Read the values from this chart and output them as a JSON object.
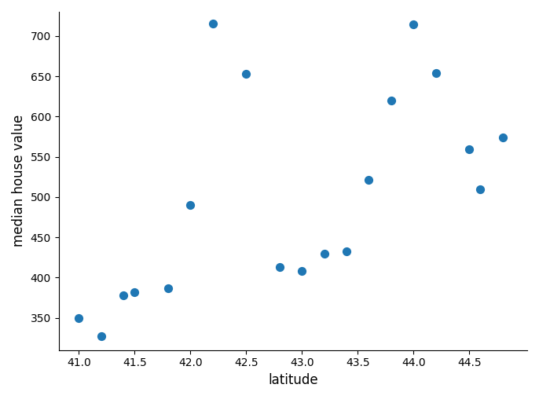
{
  "latitudes": [
    41.0,
    41.2,
    41.4,
    41.5,
    41.8,
    42.0,
    42.2,
    42.5,
    42.8,
    43.0,
    43.2,
    43.4,
    43.6,
    43.8,
    44.0,
    44.2,
    44.5,
    44.6,
    44.8
  ],
  "values": [
    350,
    327,
    378,
    382,
    387,
    490,
    715,
    653,
    413,
    408,
    430,
    433,
    521,
    620,
    714,
    654,
    559,
    510,
    574
  ],
  "dot_color": "#1f77b4",
  "dot_size": 50,
  "xlabel": "latitude",
  "ylabel": "median house value",
  "xlim": [
    40.82,
    45.02
  ],
  "ylim": [
    310,
    730
  ],
  "xticks": [
    41.0,
    41.5,
    42.0,
    42.5,
    43.0,
    43.5,
    44.0,
    44.5
  ],
  "yticks": [
    350,
    400,
    450,
    500,
    550,
    600,
    650,
    700
  ],
  "bg_color": "#ffffff",
  "xlabel_fontsize": 12,
  "ylabel_fontsize": 12,
  "tick_fontsize": 10
}
